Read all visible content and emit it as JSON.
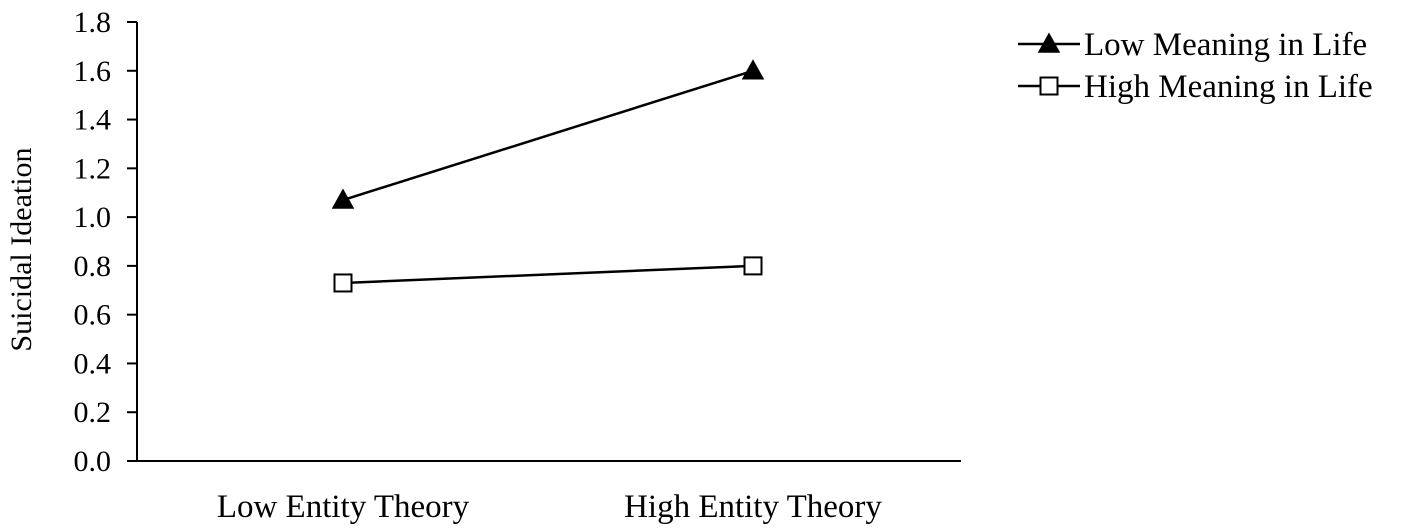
{
  "chart_data": {
    "type": "line",
    "title": "",
    "xlabel": "",
    "ylabel": "Suicidal Ideation",
    "categories": [
      "Low Entity Theory",
      "High Entity Theory"
    ],
    "ylim": [
      0.0,
      1.8
    ],
    "yticks": [
      "0.0",
      "0.2",
      "0.4",
      "0.6",
      "0.8",
      "1.0",
      "1.2",
      "1.4",
      "1.6",
      "1.8"
    ],
    "grid": false,
    "legend_position": "top-right",
    "series": [
      {
        "name": "Low Meaning in Life",
        "values": [
          1.07,
          1.6
        ],
        "marker": "filled-triangle",
        "color": "#000000"
      },
      {
        "name": "High Meaning in Life",
        "values": [
          0.73,
          0.8
        ],
        "marker": "open-square",
        "color": "#000000"
      }
    ]
  }
}
